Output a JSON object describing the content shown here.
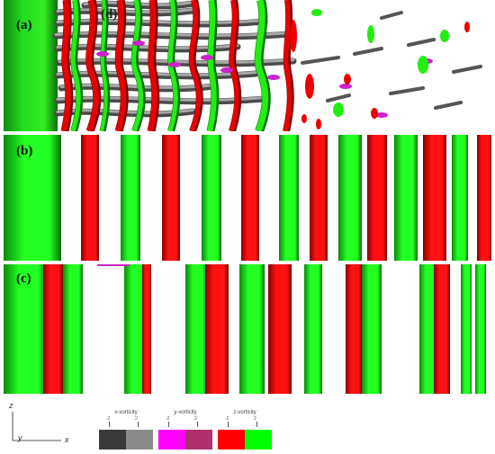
{
  "panels": {
    "a": {
      "label": "(a)",
      "sublabel": "(d)"
    },
    "b": {
      "label": "(b)"
    },
    "c": {
      "label": "(c)"
    }
  },
  "axes": {
    "z": "z",
    "y": "y",
    "x": "x"
  },
  "legend": [
    {
      "title": "x-vorticity",
      "ticks": [
        "-2",
        "2"
      ],
      "colors": [
        "#3a3a3a",
        "#8a8a8a"
      ]
    },
    {
      "title": "y-vorticity",
      "ticks": [
        "-2",
        "2"
      ],
      "colors": [
        "#ff00ff",
        "#b0306a"
      ]
    },
    {
      "title": "z-vorticity",
      "ticks": [
        "-2",
        "2"
      ],
      "colors": [
        "#ff0000",
        "#00ff00"
      ]
    }
  ],
  "colors": {
    "red": "#ee0000",
    "green": "#22ee11",
    "gray": "#6e6e6e",
    "magenta": "#cc22cc"
  }
}
